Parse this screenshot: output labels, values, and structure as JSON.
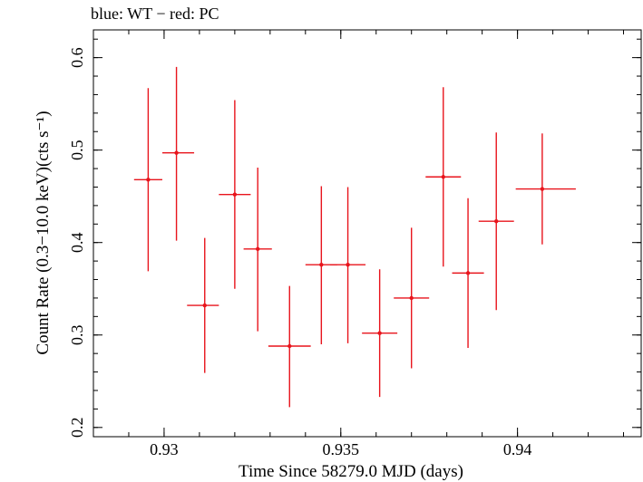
{
  "chart_data": {
    "type": "scatter",
    "title": "blue: WT − red: PC",
    "xlabel": "Time Since 58279.0 MJD (days)",
    "ylabel": "Count Rate (0.3−10.0 keV)(cts s⁻¹)",
    "xlim": [
      0.928,
      0.9435
    ],
    "ylim": [
      0.19,
      0.63
    ],
    "x_ticks": [
      {
        "value": 0.93,
        "label": "0.93"
      },
      {
        "value": 0.935,
        "label": "0.935"
      },
      {
        "value": 0.94,
        "label": "0.94"
      }
    ],
    "y_ticks": [
      {
        "value": 0.2,
        "label": "0.2"
      },
      {
        "value": 0.3,
        "label": "0.3"
      },
      {
        "value": 0.4,
        "label": "0.4"
      },
      {
        "value": 0.5,
        "label": "0.5"
      },
      {
        "value": 0.6,
        "label": "0.6"
      }
    ],
    "grid": false,
    "series": [
      {
        "name": "PC",
        "color": "#e8141c",
        "points": [
          {
            "x": 0.92955,
            "x_lo": 0.92915,
            "x_hi": 0.92995,
            "y": 0.468,
            "y_lo": 0.369,
            "y_hi": 0.567
          },
          {
            "x": 0.93035,
            "x_lo": 0.92995,
            "x_hi": 0.93085,
            "y": 0.497,
            "y_lo": 0.402,
            "y_hi": 0.59
          },
          {
            "x": 0.93115,
            "x_lo": 0.93065,
            "x_hi": 0.93155,
            "y": 0.332,
            "y_lo": 0.259,
            "y_hi": 0.405
          },
          {
            "x": 0.932,
            "x_lo": 0.93155,
            "x_hi": 0.93245,
            "y": 0.452,
            "y_lo": 0.35,
            "y_hi": 0.554
          },
          {
            "x": 0.93265,
            "x_lo": 0.93225,
            "x_hi": 0.93305,
            "y": 0.393,
            "y_lo": 0.304,
            "y_hi": 0.481
          },
          {
            "x": 0.93355,
            "x_lo": 0.93295,
            "x_hi": 0.93415,
            "y": 0.288,
            "y_lo": 0.222,
            "y_hi": 0.353
          },
          {
            "x": 0.93445,
            "x_lo": 0.934,
            "x_hi": 0.9349,
            "y": 0.376,
            "y_lo": 0.29,
            "y_hi": 0.461
          },
          {
            "x": 0.9352,
            "x_lo": 0.9347,
            "x_hi": 0.9357,
            "y": 0.376,
            "y_lo": 0.291,
            "y_hi": 0.46
          },
          {
            "x": 0.9361,
            "x_lo": 0.9356,
            "x_hi": 0.9366,
            "y": 0.302,
            "y_lo": 0.233,
            "y_hi": 0.371
          },
          {
            "x": 0.937,
            "x_lo": 0.9365,
            "x_hi": 0.9375,
            "y": 0.34,
            "y_lo": 0.264,
            "y_hi": 0.416
          },
          {
            "x": 0.9379,
            "x_lo": 0.9374,
            "x_hi": 0.9384,
            "y": 0.471,
            "y_lo": 0.374,
            "y_hi": 0.568
          },
          {
            "x": 0.9386,
            "x_lo": 0.93815,
            "x_hi": 0.93905,
            "y": 0.367,
            "y_lo": 0.286,
            "y_hi": 0.448
          },
          {
            "x": 0.9394,
            "x_lo": 0.9389,
            "x_hi": 0.9399,
            "y": 0.423,
            "y_lo": 0.327,
            "y_hi": 0.519
          },
          {
            "x": 0.9407,
            "x_lo": 0.93995,
            "x_hi": 0.94165,
            "y": 0.458,
            "y_lo": 0.398,
            "y_hi": 0.518
          }
        ]
      }
    ]
  }
}
